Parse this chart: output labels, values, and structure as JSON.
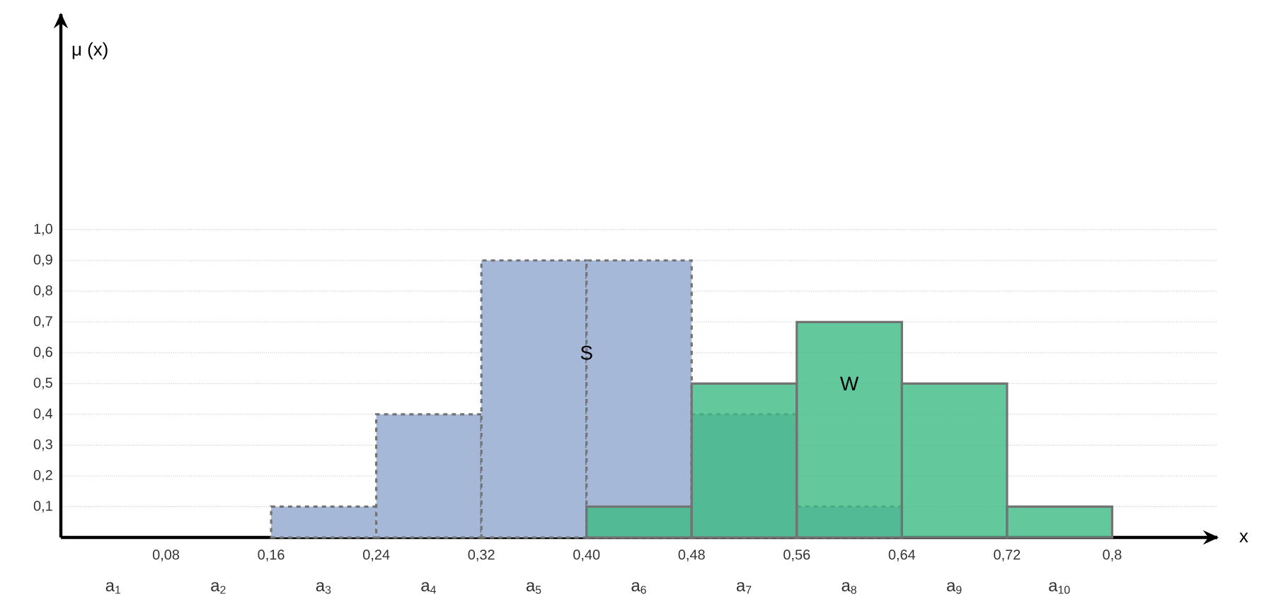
{
  "chart_data": {
    "type": "histogram",
    "xlabel": "x",
    "ylabel": "μ (x)",
    "bins": [
      0,
      0.08,
      0.16,
      0.24,
      0.32,
      0.4,
      0.48,
      0.56,
      0.64,
      0.72,
      0.8
    ],
    "series": [
      {
        "name": "S",
        "color": "#a6b8d8",
        "line_style": "dashed",
        "values": [
          null,
          null,
          0.1,
          0.4,
          0.9,
          0.9,
          0.4,
          0.1,
          null,
          null
        ]
      },
      {
        "name": "W",
        "color": "#3dba85",
        "line_style": "solid",
        "values": [
          null,
          null,
          null,
          null,
          null,
          0.1,
          0.5,
          0.7,
          0.5,
          0.1
        ]
      }
    ],
    "xlim": [
      0,
      0.88
    ],
    "ylim": [
      0,
      1.7
    ],
    "xticks": [
      {
        "value": 0.08,
        "label": "0,08"
      },
      {
        "value": 0.16,
        "label": "0,16"
      },
      {
        "value": 0.24,
        "label": "0,24"
      },
      {
        "value": 0.32,
        "label": "0,32"
      },
      {
        "value": 0.4,
        "label": "0,40"
      },
      {
        "value": 0.48,
        "label": "0,48"
      },
      {
        "value": 0.56,
        "label": "0,56"
      },
      {
        "value": 0.64,
        "label": "0,64"
      },
      {
        "value": 0.72,
        "label": "0,72"
      },
      {
        "value": 0.8,
        "label": "0,8"
      }
    ],
    "yticks": [
      {
        "value": 0.1,
        "label": "0,1"
      },
      {
        "value": 0.2,
        "label": "0,2"
      },
      {
        "value": 0.3,
        "label": "0,3"
      },
      {
        "value": 0.4,
        "label": "0,4"
      },
      {
        "value": 0.5,
        "label": "0,5"
      },
      {
        "value": 0.6,
        "label": "0,6"
      },
      {
        "value": 0.7,
        "label": "0,7"
      },
      {
        "value": 0.8,
        "label": "0,8"
      },
      {
        "value": 0.9,
        "label": "0,9"
      },
      {
        "value": 1.0,
        "label": "1,0"
      }
    ],
    "grid": "y",
    "annotations": [
      "a$_{1}$",
      "a$_{2}$",
      "a$_{3}$",
      "a$_{4}$",
      "a$_{5}$",
      "a$_{6}$",
      "a$_{7}$",
      "a$_{8}$",
      "a$_{9}$",
      "a$_{10}$"
    ]
  }
}
